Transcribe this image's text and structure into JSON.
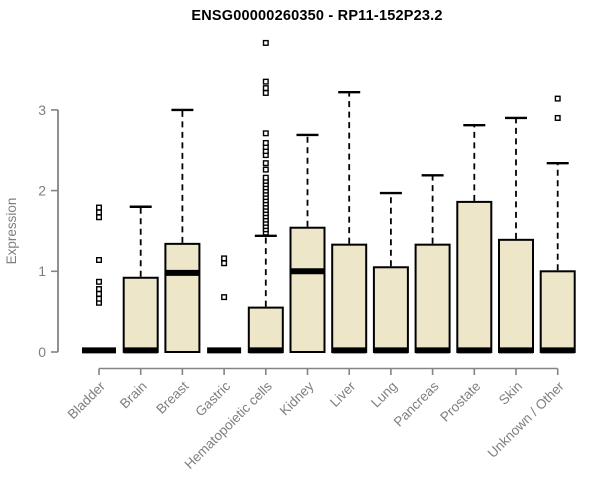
{
  "chart_data": {
    "type": "box",
    "title": "ENSG00000260350 - RP11-152P23.2",
    "ylabel": "Expression",
    "xlabel": "",
    "ylim": [
      0,
      3.9
    ],
    "yticks": [
      0,
      1,
      2,
      3
    ],
    "grid": false,
    "legend": "none",
    "colors": {
      "box_fill": "#EDE6C8",
      "box_stroke": "#000000",
      "median": "#000000",
      "axis": "#848484",
      "text": "#7F7F7F",
      "title": "#000000",
      "outlier_fill": "#FFFFFF"
    },
    "categories": [
      "Bladder",
      "Brain",
      "Breast",
      "Gastric",
      "Hematopoietic cells",
      "Kidney",
      "Liver",
      "Lung",
      "Pancreas",
      "Prostate",
      "Skin",
      "Unknown / Other"
    ],
    "series": [
      {
        "label": "Bladder",
        "q1": 0,
        "median": 0.02,
        "q3": 0.02,
        "whisker_low": 0,
        "whisker_high": 0.02,
        "outliers": [
          0.61,
          0.66,
          0.72,
          0.78,
          0.87,
          1.14,
          1.67,
          1.73,
          1.79
        ]
      },
      {
        "label": "Brain",
        "q1": 0,
        "median": 0.02,
        "q3": 0.92,
        "whisker_low": 0,
        "whisker_high": 1.8,
        "outliers": []
      },
      {
        "label": "Breast",
        "q1": 0,
        "median": 0.98,
        "q3": 1.34,
        "whisker_low": 0,
        "whisker_high": 3.0,
        "outliers": []
      },
      {
        "label": "Gastric",
        "q1": 0,
        "median": 0.02,
        "q3": 0.02,
        "whisker_low": 0,
        "whisker_high": 0.02,
        "outliers": [
          0.68,
          1.1,
          1.16
        ]
      },
      {
        "label": "Hematopoietic cells",
        "q1": 0,
        "median": 0.02,
        "q3": 0.55,
        "whisker_low": 0,
        "whisker_high": 1.44,
        "outliers": [
          1.48,
          1.52,
          1.56,
          1.6,
          1.64,
          1.68,
          1.72,
          1.76,
          1.8,
          1.84,
          1.88,
          1.92,
          1.96,
          2.0,
          2.04,
          2.08,
          2.12,
          2.16,
          2.26,
          2.34,
          2.44,
          2.49,
          2.54,
          2.59,
          2.71,
          3.21,
          3.27,
          3.35,
          3.83
        ]
      },
      {
        "label": "Kidney",
        "q1": 0,
        "median": 1.0,
        "q3": 1.54,
        "whisker_low": 0,
        "whisker_high": 2.69,
        "outliers": []
      },
      {
        "label": "Liver",
        "q1": 0,
        "median": 0.02,
        "q3": 1.33,
        "whisker_low": 0,
        "whisker_high": 3.22,
        "outliers": []
      },
      {
        "label": "Lung",
        "q1": 0,
        "median": 0.02,
        "q3": 1.05,
        "whisker_low": 0,
        "whisker_high": 1.97,
        "outliers": []
      },
      {
        "label": "Pancreas",
        "q1": 0,
        "median": 0.02,
        "q3": 1.33,
        "whisker_low": 0,
        "whisker_high": 2.19,
        "outliers": []
      },
      {
        "label": "Prostate",
        "q1": 0,
        "median": 0.02,
        "q3": 1.86,
        "whisker_low": 0,
        "whisker_high": 2.81,
        "outliers": []
      },
      {
        "label": "Skin",
        "q1": 0,
        "median": 0.02,
        "q3": 1.39,
        "whisker_low": 0,
        "whisker_high": 2.9,
        "outliers": []
      },
      {
        "label": "Unknown / Other",
        "q1": 0,
        "median": 0.02,
        "q3": 1.0,
        "whisker_low": 0,
        "whisker_high": 2.34,
        "outliers": [
          2.9,
          3.14
        ]
      }
    ]
  }
}
